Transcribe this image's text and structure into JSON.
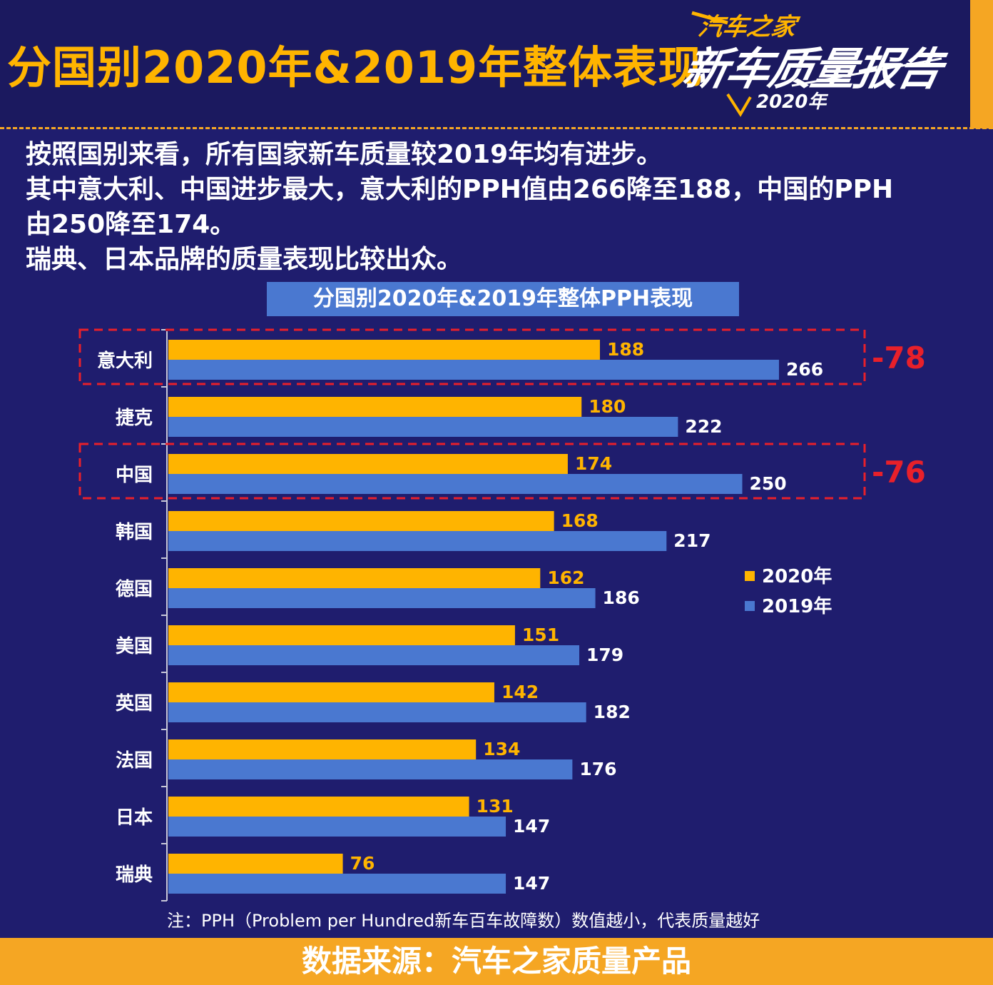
{
  "header": {
    "title": "分国别2020年&2019年整体表现",
    "logo": {
      "brand": "汽车之家",
      "report": "新车质量报告",
      "year": "2020年"
    }
  },
  "summary": [
    "按照国别来看，所有国家新车质量较2019年均有进步。",
    "其中意大利、中国进步最大，意大利的PPH值由266降至188，中国的PPH",
    "由250降至174。",
    "瑞典、日本品牌的质量表现比较出众。"
  ],
  "chart_data": {
    "type": "bar",
    "orientation": "horizontal",
    "title": "分国别2020年&2019年整体PPH表现",
    "categories": [
      "意大利",
      "捷克",
      "中国",
      "韩国",
      "德国",
      "美国",
      "英国",
      "法国",
      "日本",
      "瑞典"
    ],
    "series": [
      {
        "name": "2020年",
        "color": "#ffb400",
        "values": [
          188,
          180,
          174,
          168,
          162,
          151,
          142,
          134,
          131,
          76
        ]
      },
      {
        "name": "2019年",
        "color": "#4a78d0",
        "values": [
          266,
          222,
          250,
          217,
          186,
          179,
          182,
          176,
          147,
          147
        ]
      }
    ],
    "highlights": [
      {
        "category": "意大利",
        "label": "-78"
      },
      {
        "category": "中国",
        "label": "-76"
      }
    ],
    "legend_position": "right",
    "grid": false
  },
  "note": "注：PPH（Problem per Hundred新车百车故障数）数值越小，代表质量越好",
  "footer": "数据来源：汽车之家质量产品",
  "colors": {
    "background": "#1f1d6e",
    "accent": "#f5a623",
    "highlight": "#e8202a"
  }
}
